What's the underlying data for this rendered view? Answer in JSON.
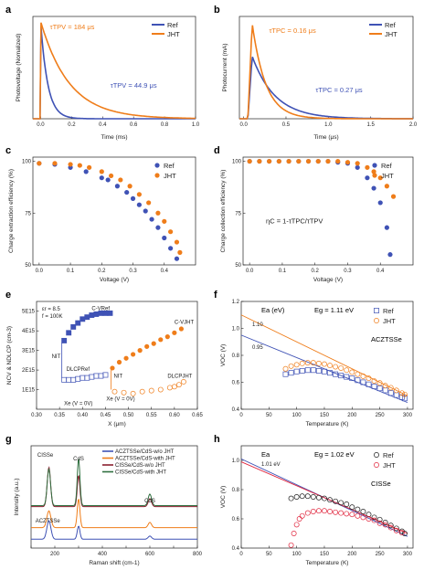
{
  "colors": {
    "ref": "#3f52b5",
    "jht": "#ef7d1a",
    "green": "#2f6f3f",
    "red": "#e0223a",
    "darkred": "#8b1f2f",
    "black": "#1a1a1a"
  },
  "panels": {
    "a": {
      "label": "a",
      "type": "line",
      "xlabel": "Time (ms)",
      "ylabel": "Photovoltage (Nomalized)",
      "xlim": [
        -0.05,
        1.0
      ],
      "ylim": [
        0,
        1.05
      ],
      "xticks": [
        0.0,
        0.2,
        0.4,
        0.6,
        0.8,
        1.0
      ],
      "xtick_labels": [
        "0.0",
        "0.2",
        "0.4",
        "0.6",
        "0.8",
        "1.0"
      ],
      "legend": [
        "Ref",
        "JHT"
      ],
      "annotations": [
        {
          "text": "τTPV = 184 μs",
          "series": "JHT",
          "at": [
            0.06,
            0.92
          ]
        },
        {
          "text": "τTPV = 44.9 μs",
          "series": "Ref",
          "at": [
            0.45,
            0.32
          ]
        }
      ],
      "series": [
        {
          "name": "Ref",
          "color_key": "ref",
          "kind": "decay",
          "start": 0.0,
          "peak": 1.0,
          "tau": 0.0449,
          "xmax": 1.0
        },
        {
          "name": "JHT",
          "color_key": "jht",
          "kind": "decay",
          "start": 0.0,
          "peak": 1.0,
          "tau": 0.184,
          "xmax": 1.0
        }
      ]
    },
    "b": {
      "label": "b",
      "type": "line",
      "xlabel": "Time (μs)",
      "ylabel": "Photocurrent (mA)",
      "xlim": [
        -0.05,
        2.0
      ],
      "ylim": [
        0,
        0.62
      ],
      "xticks": [
        0.0,
        0.5,
        1.0,
        1.5,
        2.0
      ],
      "xtick_labels": [
        "0.0",
        "0.5",
        "1.0",
        "1.5",
        "2.0"
      ],
      "legend": [
        "Ref",
        "JHT"
      ],
      "annotations": [
        {
          "text": "τTPC = 0.16 μs",
          "series": "JHT",
          "at": [
            0.3,
            0.52
          ]
        },
        {
          "text": "τTPC = 0.27 μs",
          "series": "Ref",
          "at": [
            0.85,
            0.16
          ]
        }
      ],
      "series": [
        {
          "name": "Ref",
          "color_key": "ref",
          "kind": "risedecay",
          "start": 0.05,
          "rise": 0.1,
          "peak": 0.38,
          "tau": 0.27,
          "xmax": 2.0
        },
        {
          "name": "JHT",
          "color_key": "jht",
          "kind": "risedecay",
          "start": 0.05,
          "rise": 0.1,
          "peak": 0.58,
          "tau": 0.16,
          "xmax": 2.0
        }
      ]
    },
    "c": {
      "label": "c",
      "type": "scatter",
      "xlabel": "Voltage (V)",
      "ylabel": "Charge extraction efficiency (%)",
      "xlim": [
        -0.02,
        0.5
      ],
      "ylim": [
        50,
        102
      ],
      "xticks": [
        0.0,
        0.1,
        0.2,
        0.3,
        0.4
      ],
      "xtick_labels": [
        "0.0",
        "0.1",
        "0.2",
        "0.3",
        "0.4"
      ],
      "yticks": [
        50,
        75,
        100
      ],
      "ytick_labels": [
        "50",
        "75",
        "100"
      ],
      "legend": [
        "Ref",
        "JHT"
      ],
      "series": [
        {
          "name": "Ref",
          "color_key": "ref",
          "x": [
            0.0,
            0.05,
            0.1,
            0.15,
            0.2,
            0.22,
            0.25,
            0.28,
            0.3,
            0.32,
            0.34,
            0.36,
            0.38,
            0.4,
            0.42,
            0.44
          ],
          "y": [
            99,
            98.5,
            97,
            95,
            92,
            91,
            88,
            85,
            82,
            79,
            76,
            72,
            68,
            63,
            58,
            53
          ]
        },
        {
          "name": "JHT",
          "color_key": "jht",
          "x": [
            0.0,
            0.05,
            0.1,
            0.13,
            0.16,
            0.2,
            0.23,
            0.26,
            0.29,
            0.32,
            0.35,
            0.38,
            0.4,
            0.42,
            0.44,
            0.45
          ],
          "y": [
            99,
            99,
            98.5,
            98,
            97,
            95,
            93,
            91,
            88,
            84,
            80,
            75,
            71,
            66,
            61,
            56
          ]
        }
      ]
    },
    "d": {
      "label": "d",
      "type": "scatter",
      "xlabel": "Voltage (V)",
      "ylabel": "Charge collection efficiency (%)",
      "xlim": [
        -0.02,
        0.5
      ],
      "ylim": [
        50,
        102
      ],
      "xticks": [
        0.0,
        0.1,
        0.2,
        0.3,
        0.4
      ],
      "xtick_labels": [
        "0.0",
        "0.1",
        "0.2",
        "0.3",
        "0.4"
      ],
      "yticks": [
        50,
        75,
        100
      ],
      "ytick_labels": [
        "50",
        "75",
        "100"
      ],
      "legend": [
        "Ref",
        "JHT"
      ],
      "annotations": [
        {
          "text": "ηC = 1-τTPC/τTPV",
          "series": "",
          "at": [
            0.05,
            70
          ]
        }
      ],
      "series": [
        {
          "name": "Ref",
          "color_key": "ref",
          "x": [
            0.0,
            0.03,
            0.06,
            0.09,
            0.12,
            0.15,
            0.18,
            0.21,
            0.24,
            0.27,
            0.3,
            0.33,
            0.36,
            0.38,
            0.4,
            0.42,
            0.43
          ],
          "y": [
            100,
            100,
            100,
            100,
            100,
            100,
            100,
            100,
            100,
            99.5,
            99,
            97,
            92,
            87,
            80,
            68,
            55
          ]
        },
        {
          "name": "JHT",
          "color_key": "jht",
          "x": [
            0.0,
            0.03,
            0.06,
            0.09,
            0.12,
            0.15,
            0.18,
            0.21,
            0.24,
            0.27,
            0.3,
            0.33,
            0.36,
            0.38,
            0.4,
            0.42,
            0.44
          ],
          "y": [
            100,
            100,
            100,
            100,
            100,
            100,
            100,
            100,
            100,
            100,
            99.5,
            99,
            97,
            95,
            92,
            88,
            83
          ]
        }
      ]
    },
    "e": {
      "label": "e",
      "type": "scatter",
      "xlabel": "X (μm)",
      "ylabel": "NCV & NDLCP (cm-3)",
      "xlim": [
        0.3,
        0.65
      ],
      "ylim": [
        0,
        5500000000000000.0
      ],
      "xticks": [
        0.3,
        0.35,
        0.4,
        0.45,
        0.5,
        0.55,
        0.6,
        0.65
      ],
      "xtick_labels": [
        "0.30",
        "0.35",
        "0.40",
        "0.45",
        "0.50",
        "0.55",
        "0.60",
        "0.65"
      ],
      "yticks": [
        1000000000000000.0,
        2000000000000000.0,
        3000000000000000.0,
        4000000000000000.0,
        5000000000000000.0
      ],
      "ytick_labels": [
        "1E15",
        "2E15",
        "3E15",
        "4E15",
        "5E15"
      ],
      "params": [
        "εr = 8.5",
        "f = 100K"
      ],
      "labels": [
        "C-VRef",
        "DLCPRef",
        "C-VJHT",
        "DLCPJHT",
        "NIT",
        "NIT",
        "Xe (V = 0V)",
        "Xe (V = 0V)"
      ],
      "series": [
        {
          "name": "C-V Ref",
          "color_key": "ref",
          "marker": "square-filled",
          "x": [
            0.36,
            0.37,
            0.38,
            0.39,
            0.4,
            0.41,
            0.42,
            0.43,
            0.44,
            0.45,
            0.46
          ],
          "y": [
            3500000000000000.0,
            3900000000000000.0,
            4200000000000000.0,
            4400000000000000.0,
            4600000000000000.0,
            4700000000000000.0,
            4800000000000000.0,
            4850000000000000.0,
            4900000000000000.0,
            4900000000000000.0,
            4900000000000000.0
          ]
        },
        {
          "name": "DLCP Ref",
          "color_key": "ref",
          "marker": "square-open",
          "x": [
            0.36,
            0.37,
            0.38,
            0.39,
            0.4,
            0.41,
            0.42,
            0.43,
            0.44,
            0.45
          ],
          "y": [
            1500000000000000.0,
            1500000000000000.0,
            1500000000000000.0,
            1550000000000000.0,
            1600000000000000.0,
            1600000000000000.0,
            1650000000000000.0,
            1700000000000000.0,
            1700000000000000.0,
            1750000000000000.0
          ]
        },
        {
          "name": "C-V JHT",
          "color_key": "jht",
          "marker": "circle-filled",
          "x": [
            0.465,
            0.48,
            0.495,
            0.51,
            0.525,
            0.54,
            0.555,
            0.57,
            0.585,
            0.6,
            0.615
          ],
          "y": [
            2100000000000000.0,
            2400000000000000.0,
            2600000000000000.0,
            2800000000000000.0,
            3000000000000000.0,
            3200000000000000.0,
            3350000000000000.0,
            3550000000000000.0,
            3700000000000000.0,
            3900000000000000.0,
            4100000000000000.0
          ]
        },
        {
          "name": "DLCP JHT",
          "color_key": "jht",
          "marker": "circle-open",
          "x": [
            0.47,
            0.49,
            0.51,
            0.53,
            0.55,
            0.57,
            0.59,
            0.6,
            0.61,
            0.62
          ],
          "y": [
            900000000000000.0,
            850000000000000.0,
            800000000000000.0,
            900000000000000.0,
            950000000000000.0,
            1000000000000000.0,
            1100000000000000.0,
            1150000000000000.0,
            1250000000000000.0,
            1400000000000000.0
          ]
        }
      ]
    },
    "f": {
      "label": "f",
      "type": "scatter",
      "xlabel": "Temperature (K)",
      "ylabel": "VOC (V)",
      "xlim": [
        0,
        310
      ],
      "ylim": [
        0.4,
        1.2
      ],
      "xticks": [
        0,
        50,
        100,
        150,
        200,
        250,
        300
      ],
      "xtick_labels": [
        "0",
        "50",
        "100",
        "150",
        "200",
        "250",
        "300"
      ],
      "yticks": [
        0.4,
        0.6,
        0.8,
        1.0,
        1.2
      ],
      "ytick_labels": [
        "0.4",
        "0.6",
        "0.8",
        "1.0",
        "1.2"
      ],
      "texts": [
        "Ea (eV)",
        "Eg = 1.11 eV",
        "ACZTSSe"
      ],
      "fit_labels": [
        "1.10",
        "0.95"
      ],
      "legend": [
        "Ref",
        "JHT"
      ],
      "fits": [
        {
          "color_key": "jht",
          "x": [
            0,
            300
          ],
          "y": [
            1.1,
            0.5
          ]
        },
        {
          "color_key": "ref",
          "x": [
            0,
            300
          ],
          "y": [
            0.95,
            0.45
          ]
        }
      ],
      "series": [
        {
          "name": "Ref",
          "color_key": "ref",
          "marker": "square-open",
          "x": [
            80,
            90,
            100,
            110,
            120,
            130,
            140,
            150,
            160,
            170,
            180,
            190,
            200,
            210,
            220,
            230,
            240,
            250,
            260,
            270,
            280,
            290,
            295
          ],
          "y": [
            0.66,
            0.67,
            0.68,
            0.685,
            0.69,
            0.69,
            0.685,
            0.68,
            0.67,
            0.66,
            0.65,
            0.64,
            0.63,
            0.615,
            0.6,
            0.585,
            0.57,
            0.555,
            0.54,
            0.52,
            0.505,
            0.49,
            0.48
          ]
        },
        {
          "name": "JHT",
          "color_key": "jht",
          "marker": "circle-open",
          "x": [
            80,
            90,
            100,
            110,
            120,
            130,
            140,
            150,
            160,
            170,
            180,
            190,
            200,
            210,
            220,
            230,
            240,
            250,
            260,
            270,
            280,
            290,
            295
          ],
          "y": [
            0.7,
            0.72,
            0.73,
            0.74,
            0.745,
            0.745,
            0.74,
            0.735,
            0.725,
            0.715,
            0.705,
            0.69,
            0.675,
            0.66,
            0.645,
            0.63,
            0.61,
            0.595,
            0.575,
            0.56,
            0.54,
            0.52,
            0.51
          ]
        }
      ]
    },
    "g": {
      "label": "g",
      "type": "line",
      "xlabel": "Raman shift (cm-1)",
      "ylabel": "Intensity (a.u.)",
      "xlim": [
        100,
        800
      ],
      "xticks": [
        100,
        200,
        300,
        400,
        500,
        600,
        700,
        800
      ],
      "xtick_labels": [
        "",
        "200",
        "",
        "400",
        "",
        "600",
        "",
        "800"
      ],
      "peak_labels": [
        "CISSe",
        "CdS",
        "CdS",
        "ACZTSSe"
      ],
      "legend": [
        "ACZTSSe/CdS-w/o JHT",
        "ACZTSSe/CdS-with JHT",
        "CISSe/CdS-w/o JHT",
        "CISSe/CdS-with JHT"
      ],
      "series": [
        {
          "name": "ACZTSSe/CdS-w/o JHT",
          "color_key": "ref",
          "offset": 0.0,
          "peaks": [
            [
              175,
              0.35,
              12
            ],
            [
              300,
              0.25,
              8
            ],
            [
              600,
              0.06,
              10
            ]
          ]
        },
        {
          "name": "ACZTSSe/CdS-with JHT",
          "color_key": "jht",
          "offset": 0.22,
          "peaks": [
            [
              175,
              0.32,
              12
            ],
            [
              300,
              0.55,
              8
            ],
            [
              600,
              0.1,
              10
            ]
          ]
        },
        {
          "name": "CISSe/CdS-w/o JHT",
          "color_key": "darkred",
          "offset": 0.62,
          "peaks": [
            [
              175,
              0.75,
              10
            ],
            [
              300,
              0.6,
              8
            ],
            [
              600,
              0.15,
              10
            ]
          ]
        },
        {
          "name": "CISSe/CdS-with JHT",
          "color_key": "green",
          "offset": 0.64,
          "peaks": [
            [
              175,
              0.7,
              10
            ],
            [
              300,
              0.9,
              8
            ],
            [
              600,
              0.22,
              10
            ]
          ]
        }
      ]
    },
    "h": {
      "label": "h",
      "type": "scatter",
      "xlabel": "Temperature (K)",
      "ylabel": "VOC (V)",
      "xlim": [
        0,
        310
      ],
      "ylim": [
        0.4,
        1.1
      ],
      "xticks": [
        0,
        50,
        100,
        150,
        200,
        250,
        300
      ],
      "xtick_labels": [
        "0",
        "50",
        "100",
        "150",
        "200",
        "250",
        "300"
      ],
      "yticks": [
        0.4,
        0.6,
        0.8,
        1.0
      ],
      "ytick_labels": [
        "0.4",
        "0.6",
        "0.8",
        "1.0"
      ],
      "texts": [
        "Ea",
        "Eg = 1.02 eV",
        "CISSe"
      ],
      "fit_labels": [
        "1.01 eV"
      ],
      "legend": [
        "Ref",
        "JHT"
      ],
      "fits": [
        {
          "color_key": "ref",
          "x": [
            0,
            300
          ],
          "y": [
            1.01,
            0.48
          ]
        },
        {
          "color_key": "red",
          "x": [
            0,
            300
          ],
          "y": [
            0.99,
            0.5
          ]
        }
      ],
      "series": [
        {
          "name": "Ref",
          "color_key": "black",
          "marker": "circle-open",
          "x": [
            90,
            100,
            110,
            120,
            130,
            140,
            150,
            160,
            170,
            180,
            190,
            200,
            210,
            220,
            230,
            240,
            250,
            260,
            270,
            280,
            290,
            295
          ],
          "y": [
            0.74,
            0.75,
            0.755,
            0.755,
            0.75,
            0.745,
            0.74,
            0.73,
            0.72,
            0.71,
            0.7,
            0.68,
            0.665,
            0.65,
            0.63,
            0.61,
            0.595,
            0.575,
            0.555,
            0.535,
            0.515,
            0.5
          ]
        },
        {
          "name": "JHT",
          "color_key": "red",
          "marker": "circle-open",
          "x": [
            90,
            95,
            100,
            105,
            110,
            120,
            130,
            140,
            150,
            160,
            170,
            180,
            190,
            200,
            210,
            220,
            230,
            240,
            250,
            260,
            270,
            280,
            290
          ],
          "y": [
            0.42,
            0.5,
            0.56,
            0.6,
            0.62,
            0.64,
            0.65,
            0.655,
            0.655,
            0.65,
            0.645,
            0.64,
            0.635,
            0.63,
            0.62,
            0.61,
            0.6,
            0.59,
            0.57,
            0.56,
            0.54,
            0.52,
            0.505
          ]
        }
      ]
    }
  }
}
